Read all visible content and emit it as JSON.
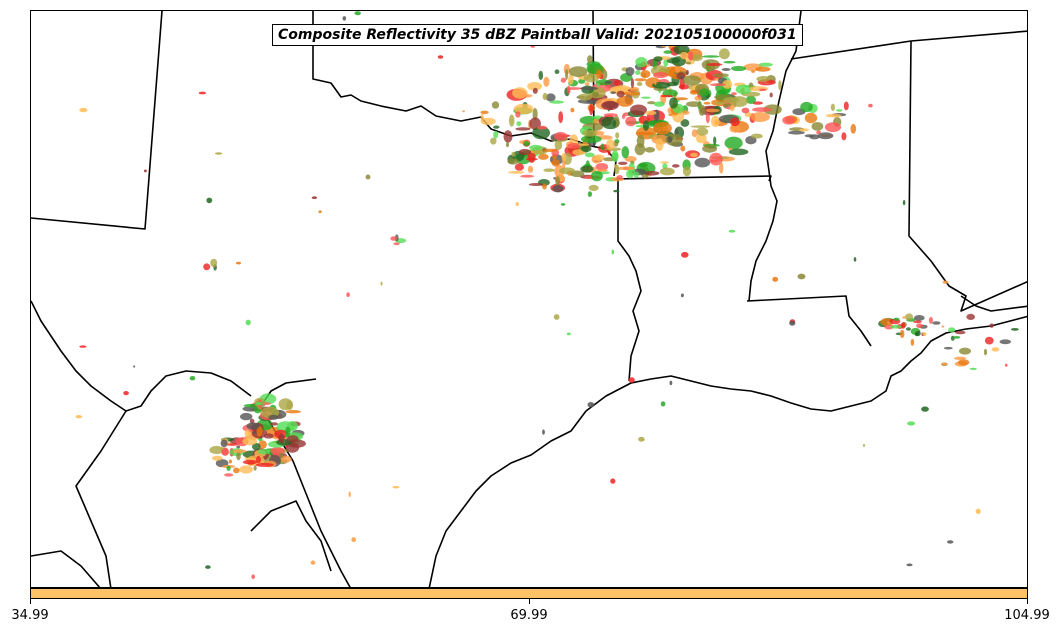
{
  "title": "Composite Reflectivity 35 dBZ Paintball Valid: 202105100000f031",
  "colorbar": {
    "color": "#ffc266",
    "ticks": [
      "34.99",
      "69.99",
      "104.99"
    ],
    "range": [
      34.99,
      104.99
    ]
  },
  "palette": {
    "orange": "#ff9944",
    "dark_orange": "#e8770e",
    "red": "#ee2222",
    "light_red": "#ff5555",
    "green": "#22aa22",
    "light_green": "#55dd55",
    "olive": "#aaa844",
    "dark_olive": "#888833",
    "maroon": "#993333",
    "dark_green": "#226622",
    "gray": "#555555",
    "gold": "#ffbb55"
  }
}
